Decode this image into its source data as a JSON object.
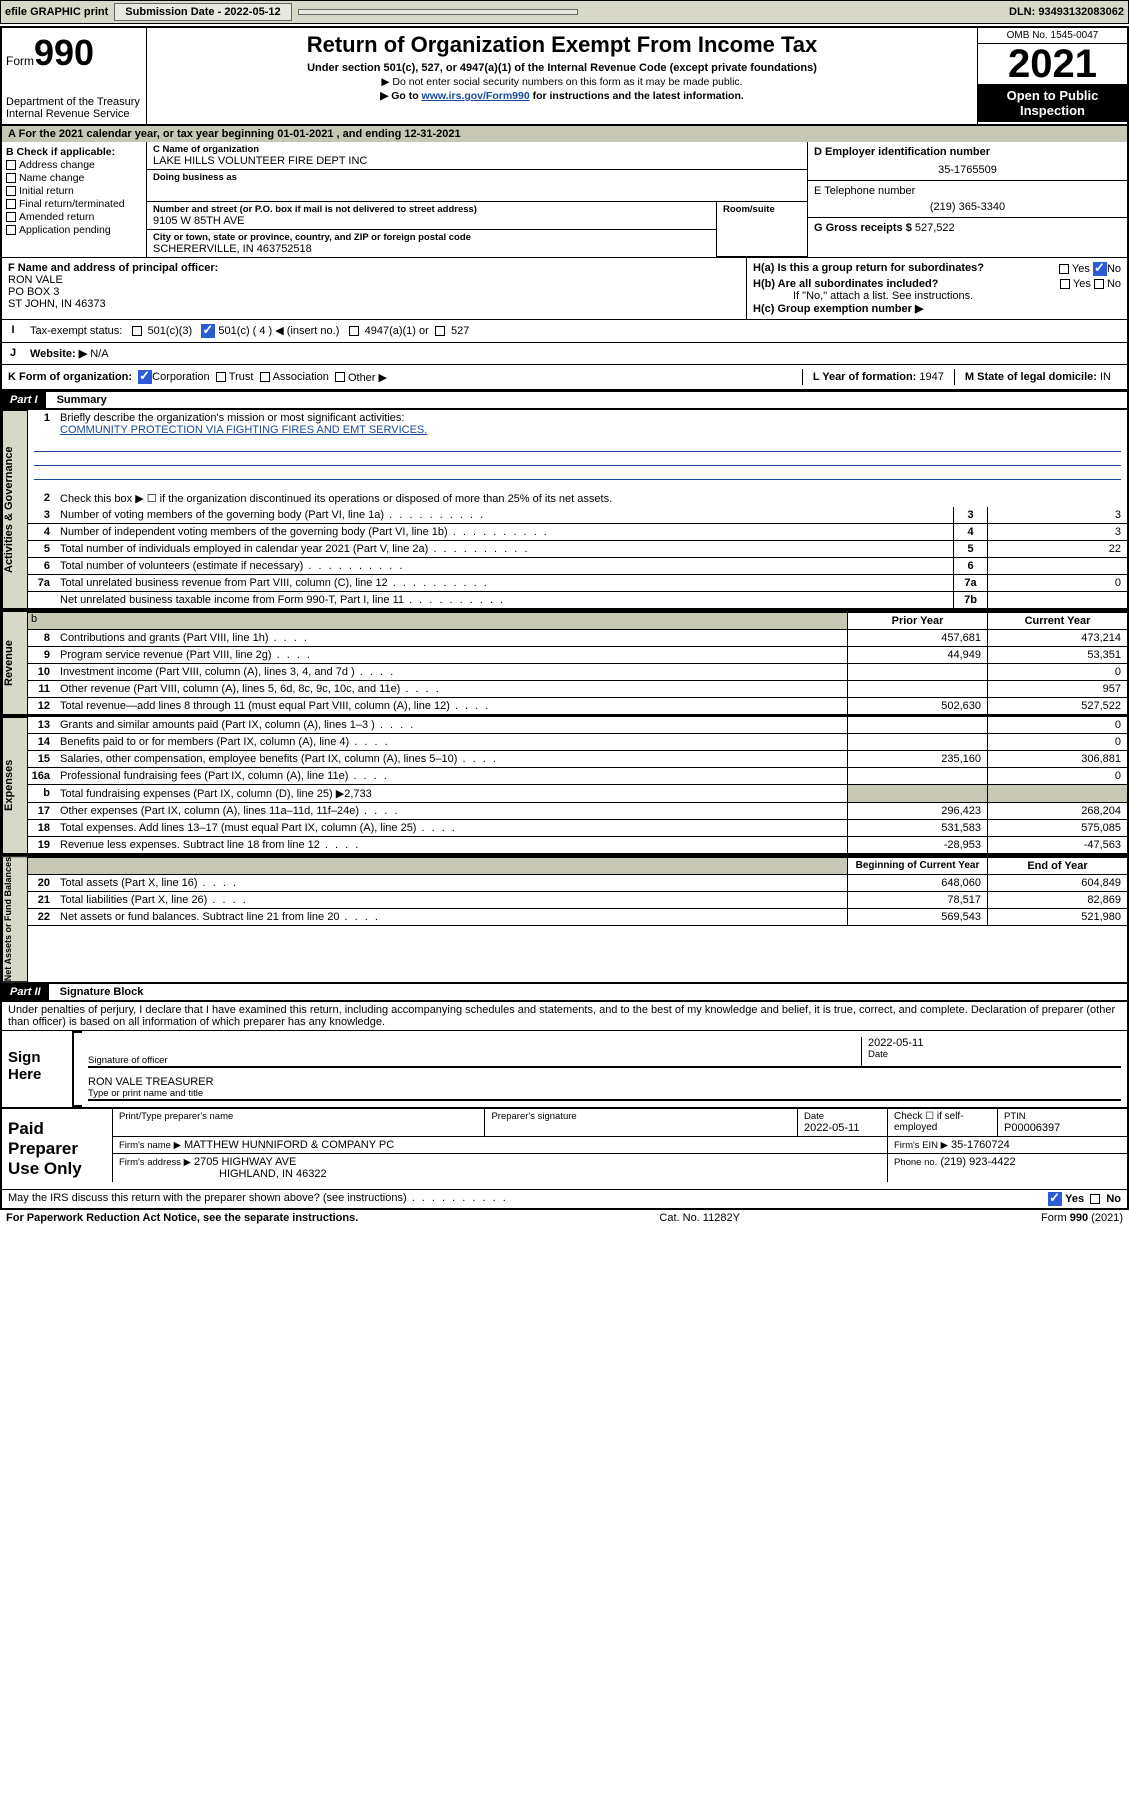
{
  "topbar": {
    "efile": "efile GRAPHIC print",
    "submission_label": "Submission Date - 2022-05-12",
    "dln_label": "DLN: 93493132083062"
  },
  "header": {
    "form_label": "Form",
    "form_num": "990",
    "dept": "Department of the Treasury Internal Revenue Service",
    "title": "Return of Organization Exempt From Income Tax",
    "subtitle": "Under section 501(c), 527, or 4947(a)(1) of the Internal Revenue Code (except private foundations)",
    "note1": "▶ Do not enter social security numbers on this form as it may be made public.",
    "note2_pre": "▶ Go to ",
    "note2_link": "www.irs.gov/Form990",
    "note2_post": " for instructions and the latest information.",
    "omb": "OMB No. 1545-0047",
    "year": "2021",
    "inspect": "Open to Public Inspection"
  },
  "line_a": "For the 2021 calendar year, or tax year beginning 01-01-2021   , and ending 12-31-2021",
  "box_b": {
    "hdr": "B Check if applicable:",
    "opts": [
      "Address change",
      "Name change",
      "Initial return",
      "Final return/terminated",
      "Amended return",
      "Application pending"
    ]
  },
  "box_c": {
    "lbl_name": "C Name of organization",
    "name": "LAKE HILLS VOLUNTEER FIRE DEPT INC",
    "dba_lbl": "Doing business as",
    "addr_lbl": "Number and street (or P.O. box if mail is not delivered to street address)",
    "room_lbl": "Room/suite",
    "addr": "9105 W 85TH AVE",
    "city_lbl": "City or town, state or province, country, and ZIP or foreign postal code",
    "city": "SCHERERVILLE, IN  463752518"
  },
  "box_d": {
    "lbl": "D Employer identification number",
    "val": "35-1765509"
  },
  "box_e": {
    "lbl": "E Telephone number",
    "val": "(219) 365-3340"
  },
  "box_g": {
    "lbl": "G Gross receipts $",
    "val": "527,522"
  },
  "box_f": {
    "lbl": "F  Name and address of principal officer:",
    "name": "RON VALE",
    "addr1": "PO BOX 3",
    "addr2": "ST JOHN, IN  46373"
  },
  "box_h": {
    "ha": "H(a)  Is this a group return for subordinates?",
    "ha_yes": "Yes",
    "ha_no": "No",
    "hb": "H(b)  Are all subordinates included?",
    "hb_yes": "Yes",
    "hb_no": "No",
    "hb_note": "If \"No,\" attach a list. See instructions.",
    "hc": "H(c)  Group exemption number ▶"
  },
  "box_i": {
    "lbl": "Tax-exempt status:",
    "o1": "501(c)(3)",
    "o2": "501(c) ( 4 ) ◀ (insert no.)",
    "o3": "4947(a)(1) or",
    "o4": "527"
  },
  "box_j": {
    "lbl": "Website: ▶",
    "val": "N/A"
  },
  "box_k": {
    "lbl": "K Form of organization:",
    "opts": [
      "Corporation",
      "Trust",
      "Association",
      "Other ▶"
    ]
  },
  "box_l": {
    "lbl": "L Year of formation:",
    "val": "1947"
  },
  "box_m": {
    "lbl": "M State of legal domicile:",
    "val": "IN"
  },
  "part1": {
    "hdr": "Part I",
    "title": "Summary",
    "l1": "Briefly describe the organization's mission or most significant activities:",
    "mission": "COMMUNITY PROTECTION VIA FIGHTING FIRES AND EMT SERVICES.",
    "l2": "Check this box ▶ ☐  if the organization discontinued its operations or disposed of more than 25% of its net assets.",
    "rows_gov": [
      {
        "n": "3",
        "d": "Number of voting members of the governing body (Part VI, line 1a)",
        "box": "3",
        "v": "3"
      },
      {
        "n": "4",
        "d": "Number of independent voting members of the governing body (Part VI, line 1b)",
        "box": "4",
        "v": "3"
      },
      {
        "n": "5",
        "d": "Total number of individuals employed in calendar year 2021 (Part V, line 2a)",
        "box": "5",
        "v": "22"
      },
      {
        "n": "6",
        "d": "Total number of volunteers (estimate if necessary)",
        "box": "6",
        "v": ""
      },
      {
        "n": "7a",
        "d": "Total unrelated business revenue from Part VIII, column (C), line 12",
        "box": "7a",
        "v": "0"
      },
      {
        "n": "",
        "d": "Net unrelated business taxable income from Form 990-T, Part I, line 11",
        "box": "7b",
        "v": ""
      }
    ],
    "col_prior": "Prior Year",
    "col_curr": "Current Year",
    "revenue": [
      {
        "n": "8",
        "d": "Contributions and grants (Part VIII, line 1h)",
        "p": "457,681",
        "c": "473,214"
      },
      {
        "n": "9",
        "d": "Program service revenue (Part VIII, line 2g)",
        "p": "44,949",
        "c": "53,351"
      },
      {
        "n": "10",
        "d": "Investment income (Part VIII, column (A), lines 3, 4, and 7d )",
        "p": "",
        "c": "0"
      },
      {
        "n": "11",
        "d": "Other revenue (Part VIII, column (A), lines 5, 6d, 8c, 9c, 10c, and 11e)",
        "p": "",
        "c": "957"
      },
      {
        "n": "12",
        "d": "Total revenue—add lines 8 through 11 (must equal Part VIII, column (A), line 12)",
        "p": "502,630",
        "c": "527,522"
      }
    ],
    "expenses": [
      {
        "n": "13",
        "d": "Grants and similar amounts paid (Part IX, column (A), lines 1–3 )",
        "p": "",
        "c": "0"
      },
      {
        "n": "14",
        "d": "Benefits paid to or for members (Part IX, column (A), line 4)",
        "p": "",
        "c": "0"
      },
      {
        "n": "15",
        "d": "Salaries, other compensation, employee benefits (Part IX, column (A), lines 5–10)",
        "p": "235,160",
        "c": "306,881"
      },
      {
        "n": "16a",
        "d": "Professional fundraising fees (Part IX, column (A), line 11e)",
        "p": "",
        "c": "0"
      },
      {
        "n": "b",
        "d": "Total fundraising expenses (Part IX, column (D), line 25) ▶2,733",
        "p": "GREY",
        "c": "GREY"
      },
      {
        "n": "17",
        "d": "Other expenses (Part IX, column (A), lines 11a–11d, 11f–24e)",
        "p": "296,423",
        "c": "268,204"
      },
      {
        "n": "18",
        "d": "Total expenses. Add lines 13–17 (must equal Part IX, column (A), line 25)",
        "p": "531,583",
        "c": "575,085"
      },
      {
        "n": "19",
        "d": "Revenue less expenses. Subtract line 18 from line 12",
        "p": "-28,953",
        "c": "-47,563"
      }
    ],
    "col_begin": "Beginning of Current Year",
    "col_end": "End of Year",
    "netassets": [
      {
        "n": "20",
        "d": "Total assets (Part X, line 16)",
        "p": "648,060",
        "c": "604,849"
      },
      {
        "n": "21",
        "d": "Total liabilities (Part X, line 26)",
        "p": "78,517",
        "c": "82,869"
      },
      {
        "n": "22",
        "d": "Net assets or fund balances. Subtract line 21 from line 20",
        "p": "569,543",
        "c": "521,980"
      }
    ],
    "side_gov": "Activities & Governance",
    "side_rev": "Revenue",
    "side_exp": "Expenses",
    "side_net": "Net Assets or Fund Balances"
  },
  "part2": {
    "hdr": "Part II",
    "title": "Signature Block",
    "decl": "Under penalties of perjury, I declare that I have examined this return, including accompanying schedules and statements, and to the best of my knowledge and belief, it is true, correct, and complete. Declaration of preparer (other than officer) is based on all information of which preparer has any knowledge."
  },
  "sign": {
    "here": "Sign Here",
    "sig_lbl": "Signature of officer",
    "date_lbl": "Date",
    "date": "2022-05-11",
    "name": "RON VALE TREASURER",
    "name_lbl": "Type or print name and title"
  },
  "preparer": {
    "title": "Paid Preparer Use Only",
    "r1": {
      "c1": "Print/Type preparer's name",
      "c2": "Preparer's signature",
      "c3_lbl": "Date",
      "c3": "2022-05-11",
      "c4": "Check ☐ if self-employed",
      "c5_lbl": "PTIN",
      "c5": "P00006397"
    },
    "r2": {
      "c1": "Firm's name    ▶",
      "v": "MATTHEW HUNNIFORD & COMPANY PC",
      "c2": "Firm's EIN ▶",
      "v2": "35-1760724"
    },
    "r3": {
      "c1": "Firm's address ▶",
      "v": "2705 HIGHWAY AVE",
      "v2": "HIGHLAND, IN  46322",
      "c2": "Phone no.",
      "v3": "(219) 923-4422"
    }
  },
  "footer": {
    "q": "May the IRS discuss this return with the preparer shown above? (see instructions)",
    "yes": "Yes",
    "no": "No",
    "pra": "For Paperwork Reduction Act Notice, see the separate instructions.",
    "cat": "Cat. No. 11282Y",
    "form": "Form 990 (2021)"
  },
  "colors": {
    "header_grey": "#d8d8c8",
    "link_blue": "#1a4b9b",
    "check_blue": "#2b5cd6"
  }
}
